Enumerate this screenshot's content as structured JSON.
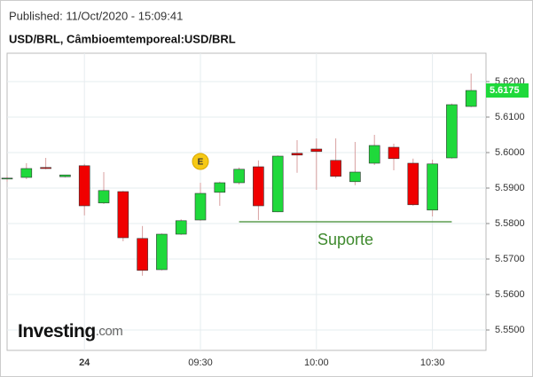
{
  "published": "Published: 11/Oct/2020 - 15:09:41",
  "chart_data": {
    "type": "candlestick",
    "title": "USD/BRL, Câmbioemtemporeal:USD/BRL",
    "categories": [
      null,
      null,
      null,
      null,
      "24",
      null,
      null,
      null,
      null,
      null,
      "09:30",
      null,
      null,
      null,
      null,
      null,
      "10:00",
      null,
      null,
      null,
      null,
      null,
      "10:30",
      null,
      null
    ],
    "open": [
      5.5926,
      5.593,
      5.5958,
      5.5932,
      5.5963,
      5.5858,
      5.589,
      5.5758,
      5.567,
      5.577,
      5.581,
      5.5888,
      5.5915,
      5.596,
      5.5833,
      5.5998,
      5.601,
      5.5978,
      5.5918,
      5.597,
      5.6015,
      5.597,
      5.5838,
      5.5985,
      5.613
    ],
    "high": [
      5.5935,
      5.597,
      5.5985,
      5.5937,
      5.5968,
      5.5945,
      5.5892,
      5.5793,
      5.5772,
      5.5812,
      5.5915,
      5.5918,
      5.5958,
      5.5978,
      5.5992,
      5.6035,
      5.604,
      5.604,
      5.603,
      5.605,
      5.6025,
      5.5983,
      5.598,
      5.6138,
      5.6223
    ],
    "low": [
      5.5918,
      5.5925,
      5.5953,
      5.593,
      5.5823,
      5.5855,
      5.575,
      5.5653,
      5.5668,
      5.5768,
      5.5808,
      5.585,
      5.591,
      5.581,
      5.5832,
      5.5943,
      5.5895,
      5.5928,
      5.5908,
      5.5965,
      5.595,
      5.585,
      5.582,
      5.5983,
      5.6128
    ],
    "close": [
      5.5928,
      5.5955,
      5.5955,
      5.5937,
      5.585,
      5.5893,
      5.576,
      5.5668,
      5.577,
      5.5808,
      5.5885,
      5.5915,
      5.5953,
      5.585,
      5.599,
      5.5993,
      5.6003,
      5.5933,
      5.5945,
      5.602,
      5.5983,
      5.5853,
      5.5968,
      5.6135,
      5.6175
    ],
    "up_color": "#1fd93b",
    "down_color": "#f00000",
    "ylim": [
      5.54425,
      5.628
    ],
    "yticks": [
      {
        "value": 5.55,
        "label": "5.5500"
      },
      {
        "value": 5.56,
        "label": "5.5600"
      },
      {
        "value": 5.57,
        "label": "5.5700"
      },
      {
        "value": 5.58,
        "label": "5.5800"
      },
      {
        "value": 5.59,
        "label": "5.5900"
      },
      {
        "value": 5.6,
        "label": "5.6000"
      },
      {
        "value": 5.61,
        "label": "5.6100"
      },
      {
        "value": 5.62,
        "label": "5.6200"
      }
    ],
    "grid": true,
    "last_price": {
      "value": 5.6175,
      "label": "5.6175"
    },
    "support": {
      "value": 5.5805,
      "label": "Suporte",
      "from": 12,
      "to": 23,
      "color": "#3f8a2e"
    },
    "event": {
      "index": 10,
      "value": 5.5975,
      "label": "E"
    },
    "logo": "Investing",
    "logo_suffix": ".com"
  }
}
